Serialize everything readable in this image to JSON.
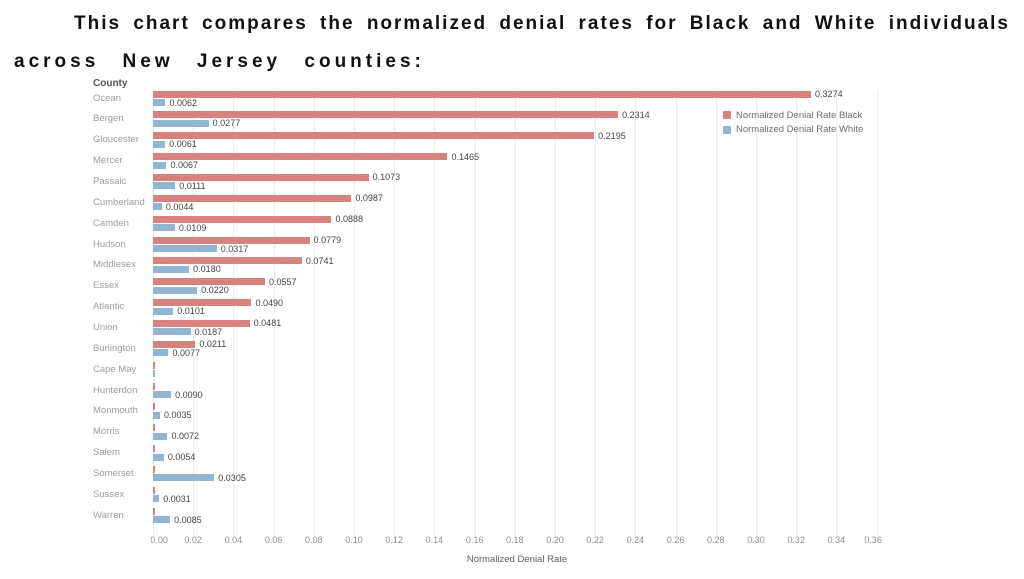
{
  "title": {
    "line1": "This chart compares the normalized denial rates for Black and White individuals",
    "line2": "across New Jersey counties:"
  },
  "chart_data": {
    "type": "bar",
    "orientation": "horizontal",
    "ylabel": "County",
    "xlabel": "Normalized Denial Rate",
    "xlim": [
      0,
      0.36
    ],
    "x_ticks": [
      0.0,
      0.02,
      0.04,
      0.06,
      0.08,
      0.1,
      0.12,
      0.14,
      0.16,
      0.18,
      0.2,
      0.22,
      0.24,
      0.26,
      0.28,
      0.3,
      0.32,
      0.34,
      0.36
    ],
    "grid": true,
    "legend_position": "top-right",
    "categories": [
      "Ocean",
      "Bergen",
      "Gloucester",
      "Mercer",
      "Passaic",
      "Cumberland",
      "Camden",
      "Hudson",
      "Middlesex",
      "Essex",
      "Atlantic",
      "Union",
      "Burlington",
      "Cape May",
      "Hunterdon",
      "Monmouth",
      "Morris",
      "Salem",
      "Somerset",
      "Sussex",
      "Warren"
    ],
    "series": [
      {
        "name": "Normalized Denial Rate Black",
        "color": "#d8827e",
        "values": [
          0.3274,
          0.2314,
          0.2195,
          0.1465,
          0.1073,
          0.0987,
          0.0888,
          0.0779,
          0.0741,
          0.0557,
          0.049,
          0.0481,
          0.0211,
          null,
          null,
          null,
          null,
          null,
          null,
          null,
          null
        ]
      },
      {
        "name": "Normalized Denial Rate White",
        "color": "#92b6d2",
        "values": [
          0.0062,
          0.0277,
          0.0061,
          0.0067,
          0.0111,
          0.0044,
          0.0109,
          0.0317,
          0.018,
          0.022,
          0.0101,
          0.0187,
          0.0077,
          null,
          0.009,
          0.0035,
          0.0072,
          0.0054,
          0.0305,
          0.0031,
          0.0085
        ]
      }
    ],
    "value_label_decimals": 4
  },
  "colors": {
    "bar_black": "#d8827e",
    "bar_white": "#92b6d2",
    "gridline": "#ececec",
    "value_label": "#454545",
    "county_label": "#9c9c9c",
    "tick_label": "#8e8e8e"
  }
}
